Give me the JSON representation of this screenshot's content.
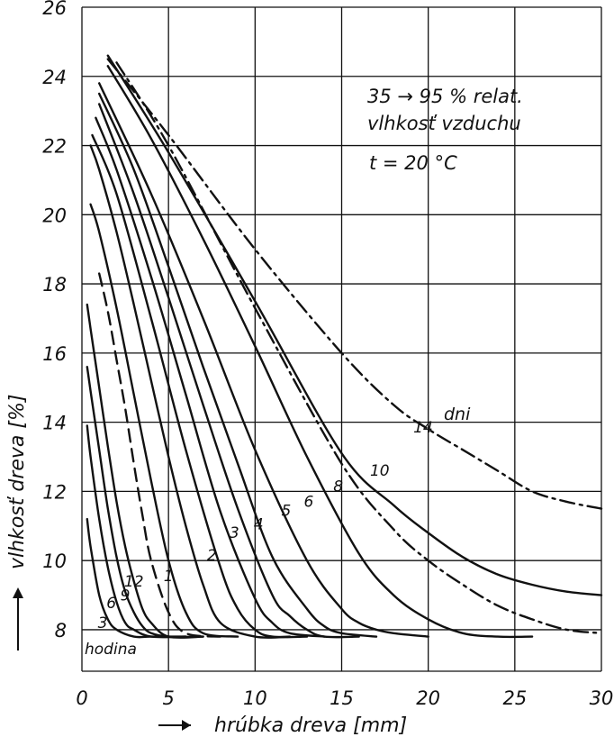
{
  "chart_data": {
    "type": "line",
    "xlabel": "hrúbka dreva [mm]",
    "ylabel": "vlhkosť dreva [%]",
    "xlim": [
      0,
      30
    ],
    "ylim": [
      6.8,
      26
    ],
    "x_ticks": [
      "0",
      "5",
      "10",
      "15",
      "20",
      "25",
      "30"
    ],
    "y_ticks": [
      "8",
      "10",
      "12",
      "14",
      "16",
      "18",
      "20",
      "22",
      "24",
      "26"
    ],
    "grid": true,
    "annotations": {
      "humidity_line1": "35 → 95 % relat.",
      "humidity_line2": "vlhkosť vzduchu",
      "temperature": "t = 20 °C",
      "unit_hours": "hodina",
      "unit_days": "dni"
    },
    "series": [
      {
        "name": "3",
        "unit": "hodina",
        "style": "solid",
        "x": [
          0.3,
          0.5,
          1,
          1.5,
          2,
          3,
          4,
          6
        ],
        "y": [
          11.2,
          10.4,
          9.0,
          8.3,
          8.0,
          7.8,
          7.8,
          7.8
        ]
      },
      {
        "name": "6",
        "unit": "hodina",
        "style": "solid",
        "x": [
          0.3,
          0.5,
          1,
          1.5,
          2,
          2.5,
          3,
          4,
          6
        ],
        "y": [
          13.9,
          13.0,
          11.2,
          9.8,
          8.8,
          8.2,
          8.0,
          7.8,
          7.8
        ]
      },
      {
        "name": "9",
        "unit": "hodina",
        "style": "solid",
        "x": [
          0.3,
          0.5,
          1,
          1.5,
          2,
          2.5,
          3,
          3.5,
          4,
          5,
          7
        ],
        "y": [
          15.6,
          14.9,
          13.2,
          11.5,
          10.1,
          9.1,
          8.5,
          8.1,
          7.9,
          7.8,
          7.8
        ]
      },
      {
        "name": "12",
        "unit": "hodina",
        "style": "solid",
        "x": [
          0.3,
          0.5,
          1,
          1.5,
          2,
          2.5,
          3,
          3.5,
          4,
          5,
          7
        ],
        "y": [
          17.4,
          16.7,
          15.0,
          13.3,
          11.7,
          10.4,
          9.4,
          8.6,
          8.2,
          7.8,
          7.8
        ]
      },
      {
        "name": "",
        "unit": "hodina",
        "style": "dashed",
        "x": [
          1,
          1.5,
          2,
          2.5,
          3,
          3.5,
          4,
          5,
          6,
          8
        ],
        "y": [
          18.3,
          17.2,
          15.8,
          14.4,
          12.8,
          11.3,
          10.0,
          8.5,
          7.9,
          7.8
        ]
      },
      {
        "name": "1",
        "unit": "dni",
        "style": "solid",
        "x": [
          0.5,
          1,
          2,
          3,
          4,
          5,
          6,
          7,
          9
        ],
        "y": [
          20.3,
          19.5,
          17.3,
          14.8,
          12.3,
          10.0,
          8.5,
          7.9,
          7.8
        ]
      },
      {
        "name": "2",
        "unit": "dni",
        "style": "solid",
        "x": [
          0.5,
          1,
          2,
          3,
          4,
          5,
          6,
          7,
          8,
          10,
          12
        ],
        "y": [
          22.0,
          21.3,
          19.5,
          17.4,
          15.2,
          13.0,
          11.0,
          9.3,
          8.2,
          7.8,
          7.8
        ]
      },
      {
        "name": "3",
        "unit": "dni",
        "style": "solid",
        "x": [
          0.6,
          2,
          4,
          6,
          8,
          9,
          10,
          11,
          13
        ],
        "y": [
          22.3,
          20.6,
          17.0,
          13.2,
          9.8,
          8.6,
          8.0,
          7.8,
          7.8
        ]
      },
      {
        "name": "4",
        "unit": "dni",
        "style": "solid",
        "x": [
          0.8,
          2,
          4,
          6,
          8,
          10,
          11,
          12,
          14
        ],
        "y": [
          22.8,
          21.3,
          18.2,
          14.8,
          11.4,
          8.9,
          8.2,
          7.9,
          7.8
        ]
      },
      {
        "name": "5",
        "unit": "dni",
        "style": "solid",
        "x": [
          1,
          3,
          5,
          7,
          9,
          11,
          12,
          13,
          14,
          16
        ],
        "y": [
          23.2,
          20.6,
          17.6,
          14.5,
          11.5,
          9.0,
          8.4,
          8.0,
          7.8,
          7.8
        ]
      },
      {
        "name": "6",
        "unit": "dni",
        "style": "solid",
        "x": [
          1,
          3,
          5,
          7,
          9,
          11,
          13,
          14,
          15,
          17
        ],
        "y": [
          23.5,
          21.3,
          18.5,
          15.6,
          12.8,
          10.1,
          8.6,
          8.1,
          7.9,
          7.8
        ]
      },
      {
        "name": "8",
        "unit": "dni",
        "style": "solid",
        "x": [
          1,
          4,
          7,
          10,
          13,
          15,
          16,
          17,
          18,
          20
        ],
        "y": [
          23.8,
          20.6,
          17.0,
          13.2,
          10.0,
          8.6,
          8.2,
          8.0,
          7.9,
          7.8
        ]
      },
      {
        "name": "10",
        "unit": "dni",
        "style": "solid",
        "x": [
          1.5,
          4,
          7,
          10,
          13,
          16,
          18,
          20,
          22,
          24,
          26
        ],
        "y": [
          24.3,
          22.2,
          19.3,
          16.2,
          13.0,
          10.2,
          9.0,
          8.3,
          7.9,
          7.8,
          7.8
        ]
      },
      {
        "name": "14",
        "unit": "dni",
        "style": "solid",
        "x": [
          1.5,
          5,
          10,
          15,
          18,
          20,
          22,
          24,
          26,
          28,
          30
        ],
        "y": [
          24.6,
          21.8,
          17.5,
          13.1,
          11.6,
          10.8,
          10.1,
          9.6,
          9.3,
          9.1,
          9.0
        ]
      },
      {
        "name": "",
        "unit": "dni",
        "style": "dashdot",
        "x": [
          2,
          5,
          10,
          15,
          18,
          20,
          22,
          24,
          26,
          28,
          30
        ],
        "y": [
          24.4,
          22.0,
          17.3,
          12.8,
          10.9,
          10.0,
          9.3,
          8.7,
          8.3,
          8.0,
          7.9
        ]
      },
      {
        "name": "",
        "unit": "dni",
        "style": "dashdot",
        "x": [
          1.5,
          5,
          10,
          15,
          18,
          20,
          22,
          24,
          26,
          28,
          30
        ],
        "y": [
          24.5,
          22.3,
          19.0,
          16.0,
          14.5,
          13.8,
          13.2,
          12.6,
          12.0,
          11.7,
          11.5
        ]
      }
    ]
  }
}
